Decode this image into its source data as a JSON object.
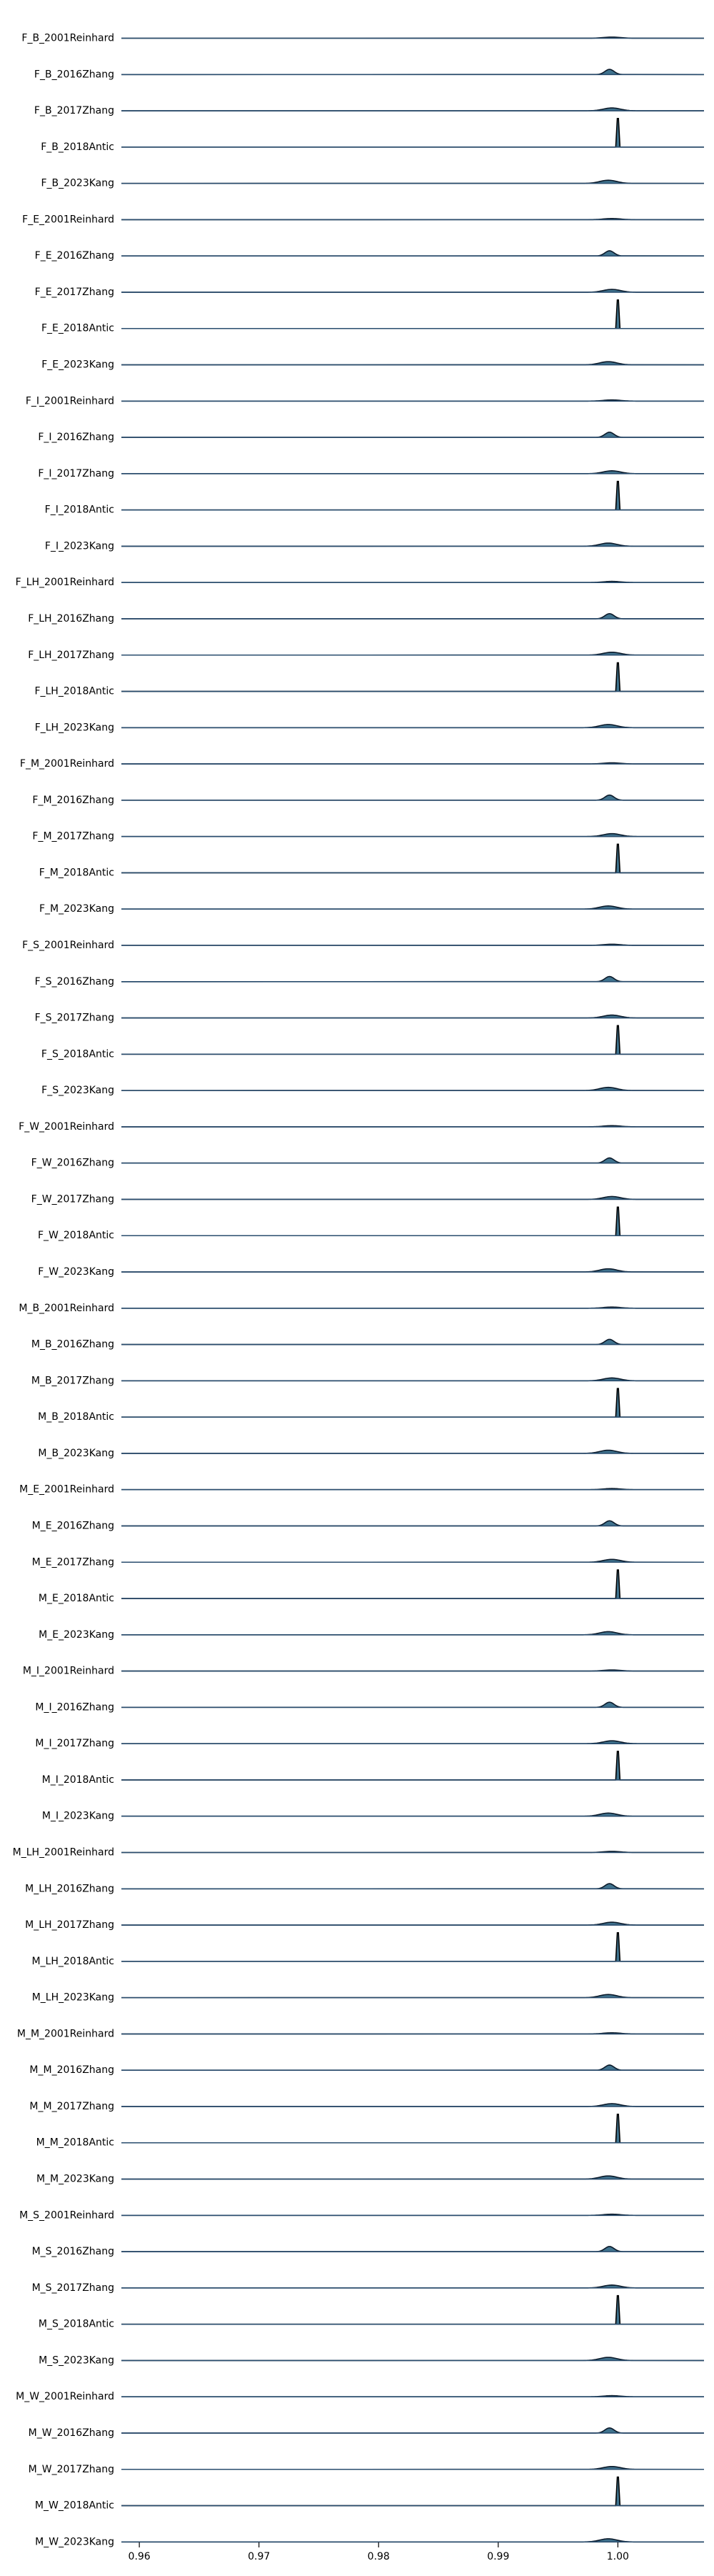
{
  "chart_data": {
    "type": "ridgeline",
    "title": "",
    "xlabel": "",
    "ylabel": "",
    "xlim": [
      0.9585,
      1.0072
    ],
    "xticks": [
      0.96,
      0.97,
      0.98,
      0.99,
      1.0
    ],
    "xtick_labels": [
      "0.96",
      "0.97",
      "0.98",
      "0.99",
      "1.00"
    ],
    "grid": false,
    "fill_color": "#1f5a7a",
    "line_color": "#0b1a2a",
    "baseline_color": "#2a4d6e",
    "peak_color": "#000000",
    "series": [
      {
        "label": "F_B_2001Reinhard",
        "peak_x": 0.9995,
        "relative_height": 0.04
      },
      {
        "label": "F_B_2016Zhang",
        "peak_x": 0.9993,
        "relative_height": 0.18
      },
      {
        "label": "F_B_2017Zhang",
        "peak_x": 0.9995,
        "relative_height": 0.1
      },
      {
        "label": "F_B_2018Antic",
        "peak_x": 1.0,
        "relative_height": 1.0
      },
      {
        "label": "F_B_2023Kang",
        "peak_x": 0.9992,
        "relative_height": 0.11
      },
      {
        "label": "F_E_2001Reinhard",
        "peak_x": 0.9995,
        "relative_height": 0.04
      },
      {
        "label": "F_E_2016Zhang",
        "peak_x": 0.9993,
        "relative_height": 0.18
      },
      {
        "label": "F_E_2017Zhang",
        "peak_x": 0.9995,
        "relative_height": 0.1
      },
      {
        "label": "F_E_2018Antic",
        "peak_x": 1.0,
        "relative_height": 1.0
      },
      {
        "label": "F_E_2023Kang",
        "peak_x": 0.9992,
        "relative_height": 0.11
      },
      {
        "label": "F_I_2001Reinhard",
        "peak_x": 0.9995,
        "relative_height": 0.04
      },
      {
        "label": "F_I_2016Zhang",
        "peak_x": 0.9993,
        "relative_height": 0.18
      },
      {
        "label": "F_I_2017Zhang",
        "peak_x": 0.9995,
        "relative_height": 0.1
      },
      {
        "label": "F_I_2018Antic",
        "peak_x": 1.0,
        "relative_height": 1.0
      },
      {
        "label": "F_I_2023Kang",
        "peak_x": 0.9992,
        "relative_height": 0.11
      },
      {
        "label": "F_LH_2001Reinhard",
        "peak_x": 0.9995,
        "relative_height": 0.04
      },
      {
        "label": "F_LH_2016Zhang",
        "peak_x": 0.9993,
        "relative_height": 0.18
      },
      {
        "label": "F_LH_2017Zhang",
        "peak_x": 0.9995,
        "relative_height": 0.1
      },
      {
        "label": "F_LH_2018Antic",
        "peak_x": 1.0,
        "relative_height": 1.0
      },
      {
        "label": "F_LH_2023Kang",
        "peak_x": 0.9992,
        "relative_height": 0.11
      },
      {
        "label": "F_M_2001Reinhard",
        "peak_x": 0.9995,
        "relative_height": 0.04
      },
      {
        "label": "F_M_2016Zhang",
        "peak_x": 0.9993,
        "relative_height": 0.18
      },
      {
        "label": "F_M_2017Zhang",
        "peak_x": 0.9995,
        "relative_height": 0.1
      },
      {
        "label": "F_M_2018Antic",
        "peak_x": 1.0,
        "relative_height": 1.0
      },
      {
        "label": "F_M_2023Kang",
        "peak_x": 0.9992,
        "relative_height": 0.11
      },
      {
        "label": "F_S_2001Reinhard",
        "peak_x": 0.9995,
        "relative_height": 0.04
      },
      {
        "label": "F_S_2016Zhang",
        "peak_x": 0.9993,
        "relative_height": 0.18
      },
      {
        "label": "F_S_2017Zhang",
        "peak_x": 0.9995,
        "relative_height": 0.1
      },
      {
        "label": "F_S_2018Antic",
        "peak_x": 1.0,
        "relative_height": 1.0
      },
      {
        "label": "F_S_2023Kang",
        "peak_x": 0.9992,
        "relative_height": 0.11
      },
      {
        "label": "F_W_2001Reinhard",
        "peak_x": 0.9995,
        "relative_height": 0.04
      },
      {
        "label": "F_W_2016Zhang",
        "peak_x": 0.9993,
        "relative_height": 0.18
      },
      {
        "label": "F_W_2017Zhang",
        "peak_x": 0.9995,
        "relative_height": 0.1
      },
      {
        "label": "F_W_2018Antic",
        "peak_x": 1.0,
        "relative_height": 1.0
      },
      {
        "label": "F_W_2023Kang",
        "peak_x": 0.9992,
        "relative_height": 0.11
      },
      {
        "label": "M_B_2001Reinhard",
        "peak_x": 0.9995,
        "relative_height": 0.04
      },
      {
        "label": "M_B_2016Zhang",
        "peak_x": 0.9993,
        "relative_height": 0.18
      },
      {
        "label": "M_B_2017Zhang",
        "peak_x": 0.9995,
        "relative_height": 0.1
      },
      {
        "label": "M_B_2018Antic",
        "peak_x": 1.0,
        "relative_height": 1.0
      },
      {
        "label": "M_B_2023Kang",
        "peak_x": 0.9992,
        "relative_height": 0.11
      },
      {
        "label": "M_E_2001Reinhard",
        "peak_x": 0.9995,
        "relative_height": 0.04
      },
      {
        "label": "M_E_2016Zhang",
        "peak_x": 0.9993,
        "relative_height": 0.18
      },
      {
        "label": "M_E_2017Zhang",
        "peak_x": 0.9995,
        "relative_height": 0.1
      },
      {
        "label": "M_E_2018Antic",
        "peak_x": 1.0,
        "relative_height": 1.0
      },
      {
        "label": "M_E_2023Kang",
        "peak_x": 0.9992,
        "relative_height": 0.11
      },
      {
        "label": "M_I_2001Reinhard",
        "peak_x": 0.9995,
        "relative_height": 0.04
      },
      {
        "label": "M_I_2016Zhang",
        "peak_x": 0.9993,
        "relative_height": 0.18
      },
      {
        "label": "M_I_2017Zhang",
        "peak_x": 0.9995,
        "relative_height": 0.1
      },
      {
        "label": "M_I_2018Antic",
        "peak_x": 1.0,
        "relative_height": 1.0
      },
      {
        "label": "M_I_2023Kang",
        "peak_x": 0.9992,
        "relative_height": 0.11
      },
      {
        "label": "M_LH_2001Reinhard",
        "peak_x": 0.9995,
        "relative_height": 0.04
      },
      {
        "label": "M_LH_2016Zhang",
        "peak_x": 0.9993,
        "relative_height": 0.18
      },
      {
        "label": "M_LH_2017Zhang",
        "peak_x": 0.9995,
        "relative_height": 0.1
      },
      {
        "label": "M_LH_2018Antic",
        "peak_x": 1.0,
        "relative_height": 1.0
      },
      {
        "label": "M_LH_2023Kang",
        "peak_x": 0.9992,
        "relative_height": 0.11
      },
      {
        "label": "M_M_2001Reinhard",
        "peak_x": 0.9995,
        "relative_height": 0.04
      },
      {
        "label": "M_M_2016Zhang",
        "peak_x": 0.9993,
        "relative_height": 0.18
      },
      {
        "label": "M_M_2017Zhang",
        "peak_x": 0.9995,
        "relative_height": 0.1
      },
      {
        "label": "M_M_2018Antic",
        "peak_x": 1.0,
        "relative_height": 1.0
      },
      {
        "label": "M_M_2023Kang",
        "peak_x": 0.9992,
        "relative_height": 0.11
      },
      {
        "label": "M_S_2001Reinhard",
        "peak_x": 0.9995,
        "relative_height": 0.04
      },
      {
        "label": "M_S_2016Zhang",
        "peak_x": 0.9993,
        "relative_height": 0.18
      },
      {
        "label": "M_S_2017Zhang",
        "peak_x": 0.9995,
        "relative_height": 0.1
      },
      {
        "label": "M_S_2018Antic",
        "peak_x": 1.0,
        "relative_height": 1.0
      },
      {
        "label": "M_S_2023Kang",
        "peak_x": 0.9992,
        "relative_height": 0.11
      },
      {
        "label": "M_W_2001Reinhard",
        "peak_x": 0.9995,
        "relative_height": 0.04
      },
      {
        "label": "M_W_2016Zhang",
        "peak_x": 0.9993,
        "relative_height": 0.18
      },
      {
        "label": "M_W_2017Zhang",
        "peak_x": 0.9995,
        "relative_height": 0.1
      },
      {
        "label": "M_W_2018Antic",
        "peak_x": 1.0,
        "relative_height": 1.0
      },
      {
        "label": "M_W_2023Kang",
        "peak_x": 0.9992,
        "relative_height": 0.11
      }
    ]
  }
}
